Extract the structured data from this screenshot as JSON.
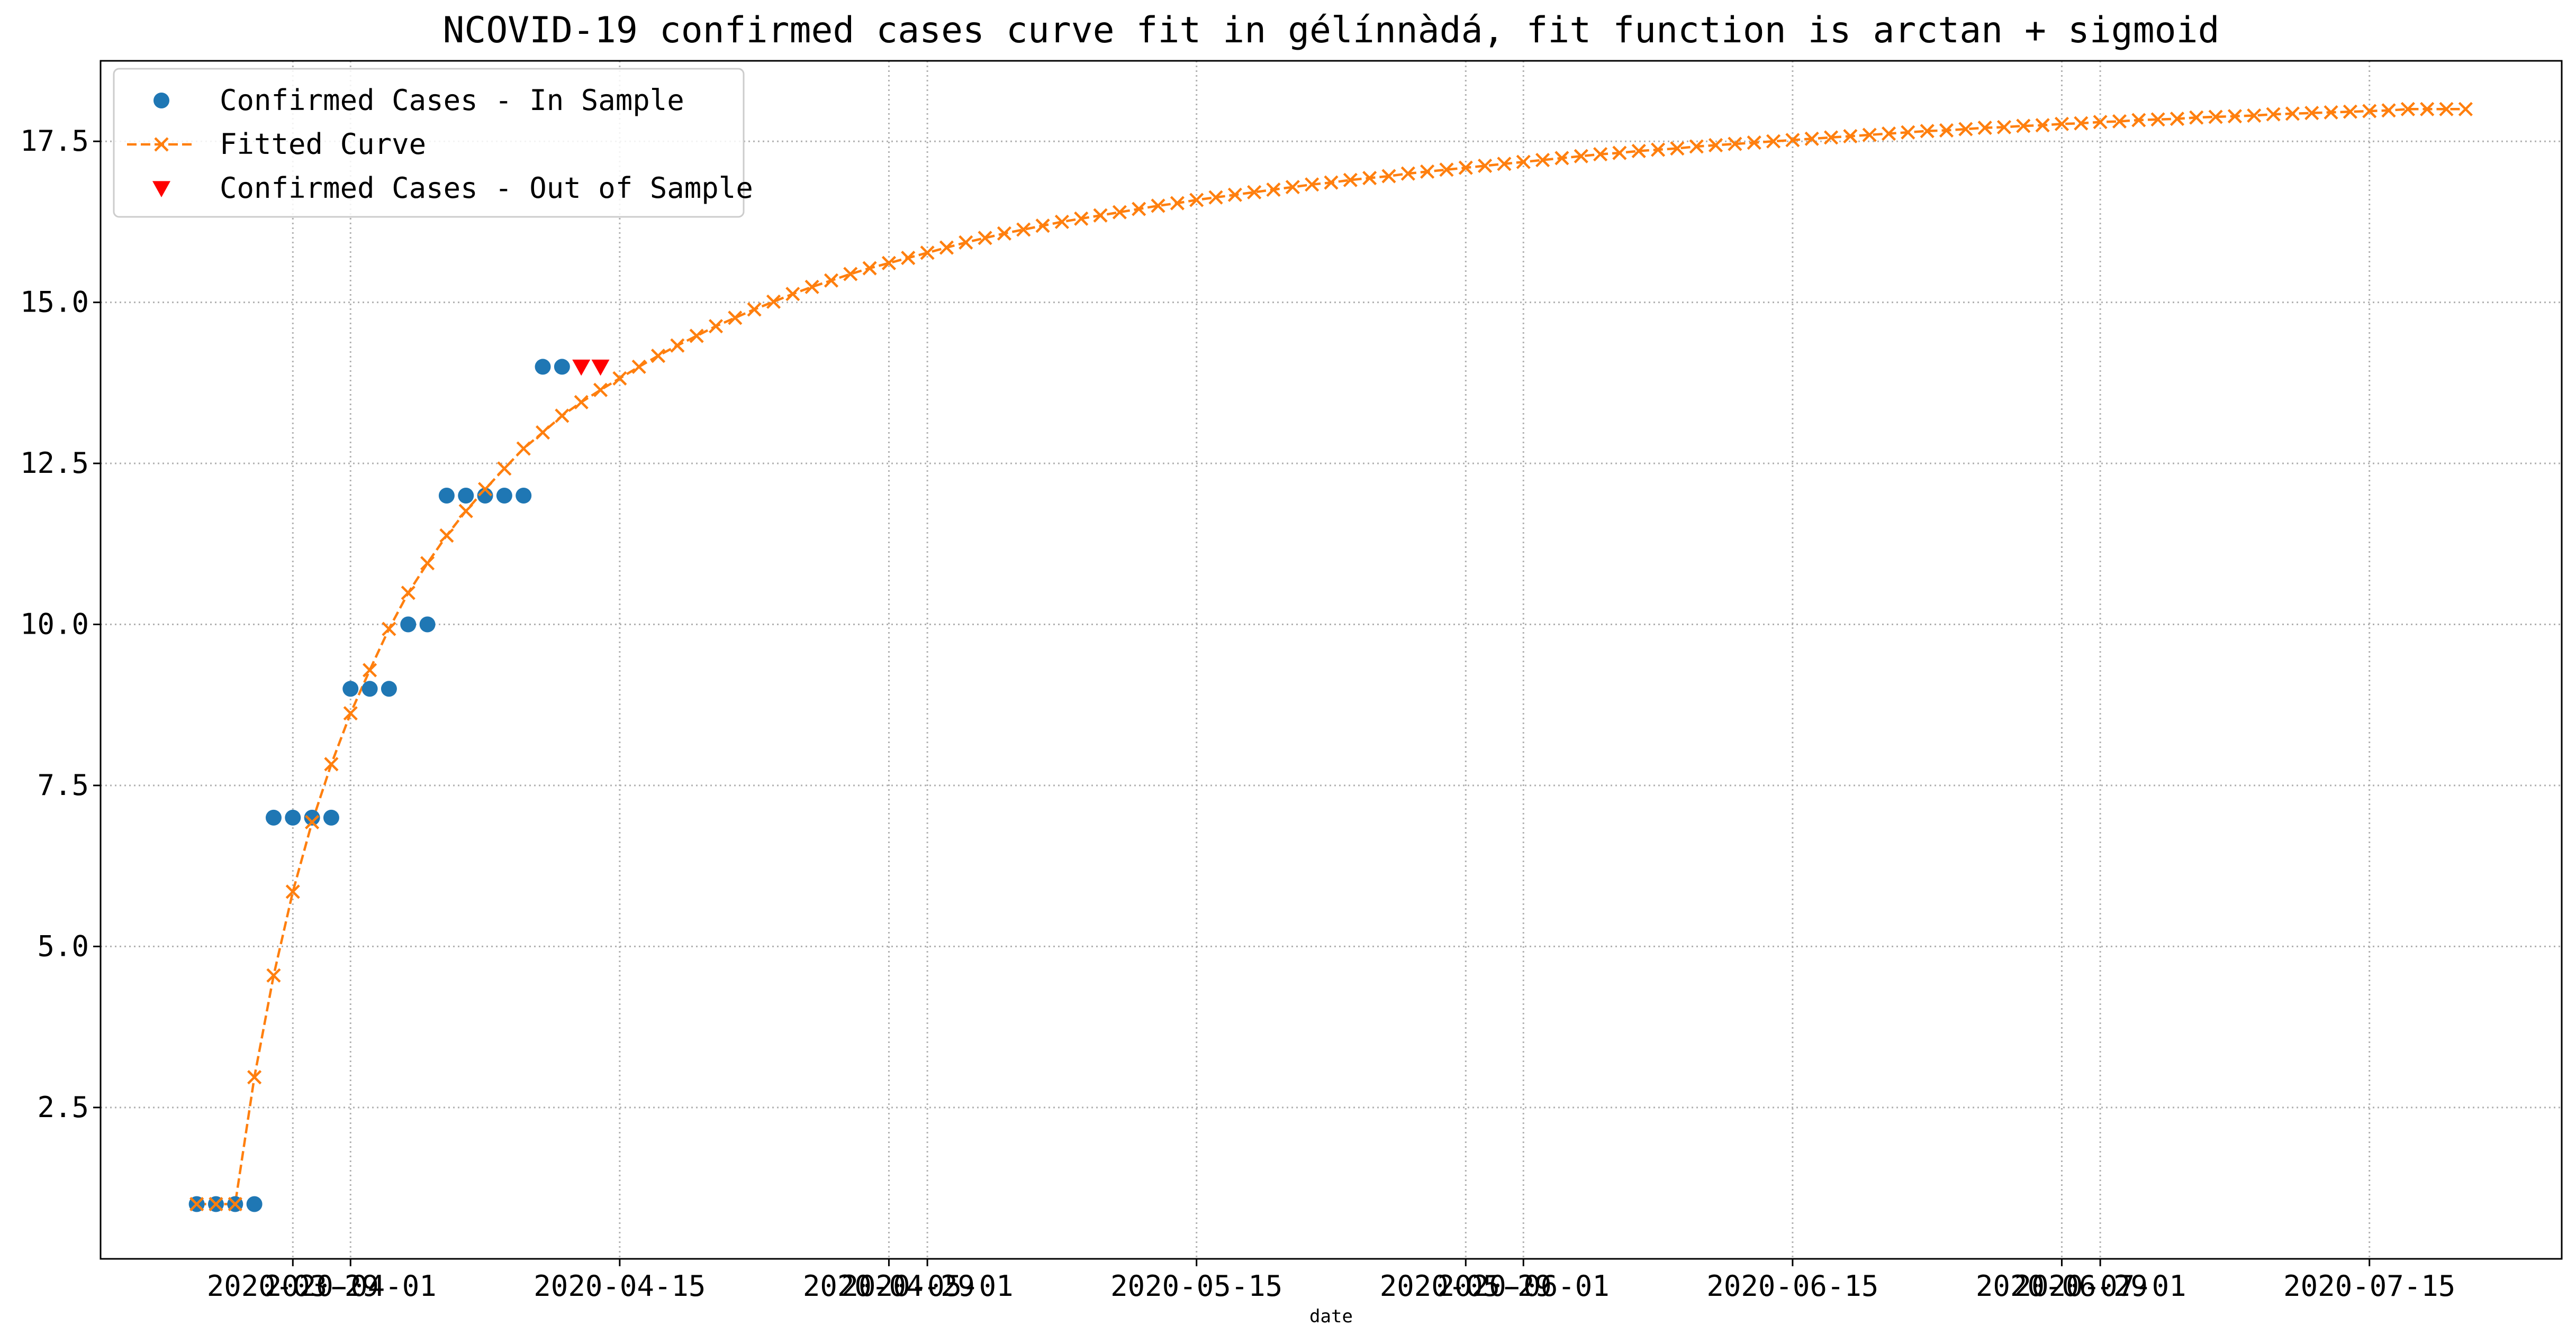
{
  "chart_data": {
    "type": "line",
    "title": "NCOVID-19 confirmed cases curve fit in gélínnàdá, fit function is arctan + sigmoid",
    "xlabel": "date",
    "ylabel": "",
    "x_is_date": true,
    "xlim": [
      "2020-03-19",
      "2020-07-25"
    ],
    "ylim": [
      0.15,
      18.75
    ],
    "grid": true,
    "legend_position": "upper-left",
    "y_ticks": [
      {
        "value": 2.5,
        "label": "2.5"
      },
      {
        "value": 5.0,
        "label": "5.0"
      },
      {
        "value": 7.5,
        "label": "7.5"
      },
      {
        "value": 10.0,
        "label": "10.0"
      },
      {
        "value": 12.5,
        "label": "12.5"
      },
      {
        "value": 15.0,
        "label": "15.0"
      },
      {
        "value": 17.5,
        "label": "17.5"
      }
    ],
    "x_ticks": [
      {
        "value": "2020-03-29",
        "label": "2020-03-29"
      },
      {
        "value": "2020-04-01",
        "label": "2020-04-01"
      },
      {
        "value": "2020-04-15",
        "label": "2020-04-15"
      },
      {
        "value": "2020-04-29",
        "label": "2020-04-29"
      },
      {
        "value": "2020-05-01",
        "label": "2020-05-01"
      },
      {
        "value": "2020-05-15",
        "label": "2020-05-15"
      },
      {
        "value": "2020-05-29",
        "label": "2020-05-29"
      },
      {
        "value": "2020-06-01",
        "label": "2020-06-01"
      },
      {
        "value": "2020-06-15",
        "label": "2020-06-15"
      },
      {
        "value": "2020-06-29",
        "label": "2020-06-29"
      },
      {
        "value": "2020-07-01",
        "label": "2020-07-01"
      },
      {
        "value": "2020-07-15",
        "label": "2020-07-15"
      }
    ],
    "series": [
      {
        "name": "Confirmed Cases - In Sample",
        "style": "markers",
        "marker": "circle",
        "color": "#1f77b4",
        "points": [
          {
            "x": "2020-03-24",
            "y": 1
          },
          {
            "x": "2020-03-25",
            "y": 1
          },
          {
            "x": "2020-03-26",
            "y": 1
          },
          {
            "x": "2020-03-27",
            "y": 1
          },
          {
            "x": "2020-03-28",
            "y": 7
          },
          {
            "x": "2020-03-29",
            "y": 7
          },
          {
            "x": "2020-03-30",
            "y": 7
          },
          {
            "x": "2020-03-31",
            "y": 7
          },
          {
            "x": "2020-04-01",
            "y": 9
          },
          {
            "x": "2020-04-02",
            "y": 9
          },
          {
            "x": "2020-04-03",
            "y": 9
          },
          {
            "x": "2020-04-04",
            "y": 10
          },
          {
            "x": "2020-04-05",
            "y": 10
          },
          {
            "x": "2020-04-06",
            "y": 12
          },
          {
            "x": "2020-04-07",
            "y": 12
          },
          {
            "x": "2020-04-08",
            "y": 12
          },
          {
            "x": "2020-04-09",
            "y": 12
          },
          {
            "x": "2020-04-10",
            "y": 12
          },
          {
            "x": "2020-04-11",
            "y": 14
          },
          {
            "x": "2020-04-12",
            "y": 14
          }
        ]
      },
      {
        "name": "Fitted Curve",
        "style": "dashed-line-x-markers",
        "marker": "x",
        "color": "#ff7f0e",
        "start_date": "2020-03-24",
        "values": [
          1.0,
          1.0,
          1.0,
          2.97,
          4.55,
          5.85,
          6.93,
          7.83,
          8.62,
          9.29,
          9.93,
          10.49,
          10.95,
          11.38,
          11.76,
          12.1,
          12.42,
          12.73,
          12.98,
          13.24,
          13.45,
          13.64,
          13.82,
          14.0,
          14.17,
          14.33,
          14.48,
          14.63,
          14.76,
          14.89,
          15.01,
          15.13,
          15.24,
          15.34,
          15.44,
          15.53,
          15.61,
          15.69,
          15.77,
          15.85,
          15.93,
          16.0,
          16.07,
          16.13,
          16.19,
          16.25,
          16.3,
          16.35,
          16.4,
          16.45,
          16.5,
          16.54,
          16.59,
          16.63,
          16.67,
          16.71,
          16.75,
          16.79,
          16.83,
          16.86,
          16.9,
          16.93,
          16.96,
          17.0,
          17.03,
          17.06,
          17.09,
          17.12,
          17.15,
          17.18,
          17.21,
          17.24,
          17.27,
          17.3,
          17.32,
          17.35,
          17.37,
          17.39,
          17.42,
          17.44,
          17.46,
          17.48,
          17.5,
          17.52,
          17.54,
          17.56,
          17.58,
          17.6,
          17.62,
          17.64,
          17.66,
          17.67,
          17.69,
          17.71,
          17.72,
          17.74,
          17.75,
          17.77,
          17.78,
          17.8,
          17.81,
          17.83,
          17.84,
          17.85,
          17.87,
          17.88,
          17.89,
          17.9,
          17.92,
          17.93,
          17.94,
          17.95,
          17.96,
          17.97,
          17.98,
          18.0,
          18.0,
          18.0,
          18.0
        ]
      },
      {
        "name": "Confirmed Cases - Out of Sample",
        "style": "markers",
        "marker": "triangle-down",
        "color": "#ff0000",
        "points": [
          {
            "x": "2020-04-13",
            "y": 14
          },
          {
            "x": "2020-04-14",
            "y": 14
          }
        ]
      }
    ]
  }
}
